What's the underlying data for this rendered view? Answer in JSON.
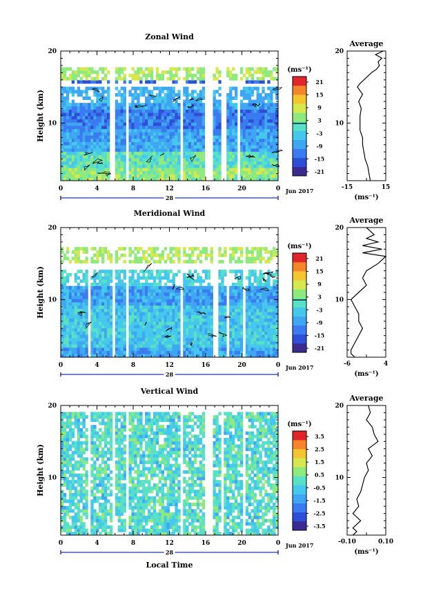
{
  "figure": {
    "x_axis_title": "Local Time",
    "date_label": "Jun 2017",
    "day_label": "28",
    "unit_label": "(ms⁻¹)",
    "colors": {
      "colorscale": [
        "#3b2a8f",
        "#2c4fd6",
        "#3a7bf0",
        "#3fa6f2",
        "#45c8ec",
        "#59e0c6",
        "#8eea7e",
        "#d6e84f",
        "#f5c431",
        "#f5852a",
        "#e0262a"
      ],
      "contour": "#000000",
      "timebar": "#2233aa"
    }
  },
  "chart_data": [
    {
      "name": "zonal",
      "type": "heatmap",
      "title": "Zonal Wind",
      "ylabel": "Height (km)",
      "xlim": [
        0,
        24
      ],
      "ylim": [
        2,
        20
      ],
      "x_ticks": [
        "0",
        "4",
        "8",
        "12",
        "16",
        "20",
        "0"
      ],
      "y_ticks": [
        "10",
        "20"
      ],
      "colorbar": {
        "ticks": [
          "21",
          "15",
          "9",
          "3",
          "-3",
          "-9",
          "-15",
          "-21"
        ],
        "range": [
          -24,
          24
        ]
      },
      "data_gaps_hours": [
        [
          5.5,
          5.9
        ],
        [
          7.1,
          7.5
        ],
        [
          13.2,
          13.5
        ],
        [
          16.0,
          16.9
        ],
        [
          17.6,
          18.2
        ],
        [
          19.5,
          19.9
        ]
      ],
      "valid_top_km": 15,
      "average_profile": {
        "title": "Average",
        "xlabel": "(ms⁻¹)",
        "xlim": [
          -15,
          15
        ],
        "x_ticks": [
          "-15",
          "15"
        ],
        "y_ticks": [
          "10",
          "20"
        ],
        "height_km": [
          2,
          3,
          4,
          5,
          6,
          7,
          8,
          9,
          10,
          11,
          12,
          13,
          14,
          15,
          15.5,
          16,
          16.5,
          17,
          17.5,
          18,
          18.5,
          19,
          19.5,
          20
        ],
        "value": [
          3,
          2,
          1,
          -1,
          -2,
          -3,
          -3,
          -5,
          -5,
          -5,
          -4,
          -6,
          -3,
          -7,
          -5,
          -2,
          1,
          4,
          8,
          10,
          9,
          12,
          7,
          13
        ]
      }
    },
    {
      "name": "meridional",
      "type": "heatmap",
      "title": "Meridional Wind",
      "ylabel": "Height (km)",
      "xlim": [
        0,
        24
      ],
      "ylim": [
        2,
        20
      ],
      "x_ticks": [
        "0",
        "4",
        "8",
        "12",
        "16",
        "20",
        "0"
      ],
      "y_ticks": [
        "10",
        "20"
      ],
      "colorbar": {
        "ticks": [
          "21",
          "15",
          "9",
          "3",
          "-3",
          "-9",
          "-15",
          "-21"
        ],
        "range": [
          -24,
          24
        ]
      },
      "data_gaps_hours": [
        [
          2.9,
          3.2
        ],
        [
          5.6,
          5.9
        ],
        [
          7.1,
          7.4
        ],
        [
          13.2,
          13.5
        ],
        [
          16.9,
          17.3
        ],
        [
          18.3,
          18.7
        ],
        [
          20.2,
          20.5
        ]
      ],
      "valid_top_km": 14,
      "average_profile": {
        "title": "Average",
        "xlabel": "(ms⁻¹)",
        "xlim": [
          -6,
          4
        ],
        "x_ticks": [
          "-6",
          "4"
        ],
        "y_ticks": [
          "10",
          "20"
        ],
        "height_km": [
          2,
          2.5,
          3,
          4,
          5,
          6,
          7,
          8,
          9,
          10,
          11,
          12,
          13,
          14,
          15,
          16,
          16.5,
          17,
          17.5,
          18,
          18.5,
          19,
          19.5,
          20
        ],
        "value": [
          -4,
          -5,
          -5,
          -4,
          -3,
          -2,
          -3,
          -3,
          -4,
          -5,
          -3,
          -1,
          -2,
          -1,
          2,
          4,
          -2,
          3,
          -2,
          2,
          -1,
          1,
          0,
          -1
        ]
      }
    },
    {
      "name": "vertical",
      "type": "heatmap",
      "title": "Vertical Wind",
      "ylabel": "Height (km)",
      "xlabel": "Local Time",
      "xlim": [
        0,
        24
      ],
      "ylim": [
        2,
        20
      ],
      "x_ticks": [
        "0",
        "4",
        "8",
        "12",
        "16",
        "20",
        "0"
      ],
      "y_ticks": [
        "10",
        "20"
      ],
      "colorbar": {
        "ticks": [
          "3.5",
          "2.5",
          "1.5",
          "0.5",
          "-0.5",
          "-1.5",
          "-2.5",
          "-3.5"
        ],
        "range": [
          -4,
          4
        ]
      },
      "data_gaps_hours": [
        [
          2.9,
          3.2
        ],
        [
          5.6,
          5.9
        ],
        [
          7.1,
          7.4
        ],
        [
          13.2,
          13.5
        ],
        [
          16.0,
          16.8
        ],
        [
          17.7,
          18.1
        ],
        [
          20.2,
          20.5
        ]
      ],
      "valid_top_km": 19,
      "average_profile": {
        "title": "Average",
        "xlabel": "(ms⁻¹)",
        "xlim": [
          -0.1,
          0.1
        ],
        "x_ticks": [
          "-0.10",
          "0.10"
        ],
        "y_ticks": [
          "10",
          "20"
        ],
        "height_km": [
          2,
          2.5,
          3,
          4,
          5,
          6,
          7,
          8,
          9,
          10,
          11,
          12,
          13,
          14,
          15,
          16,
          17,
          18,
          19,
          20
        ],
        "value": [
          -0.07,
          -0.05,
          -0.07,
          -0.03,
          -0.07,
          -0.04,
          -0.05,
          -0.03,
          -0.02,
          -0.01,
          0.01,
          0.0,
          0.03,
          0.01,
          0.06,
          0.04,
          0.03,
          0.0,
          0.02,
          0.01
        ]
      }
    }
  ]
}
